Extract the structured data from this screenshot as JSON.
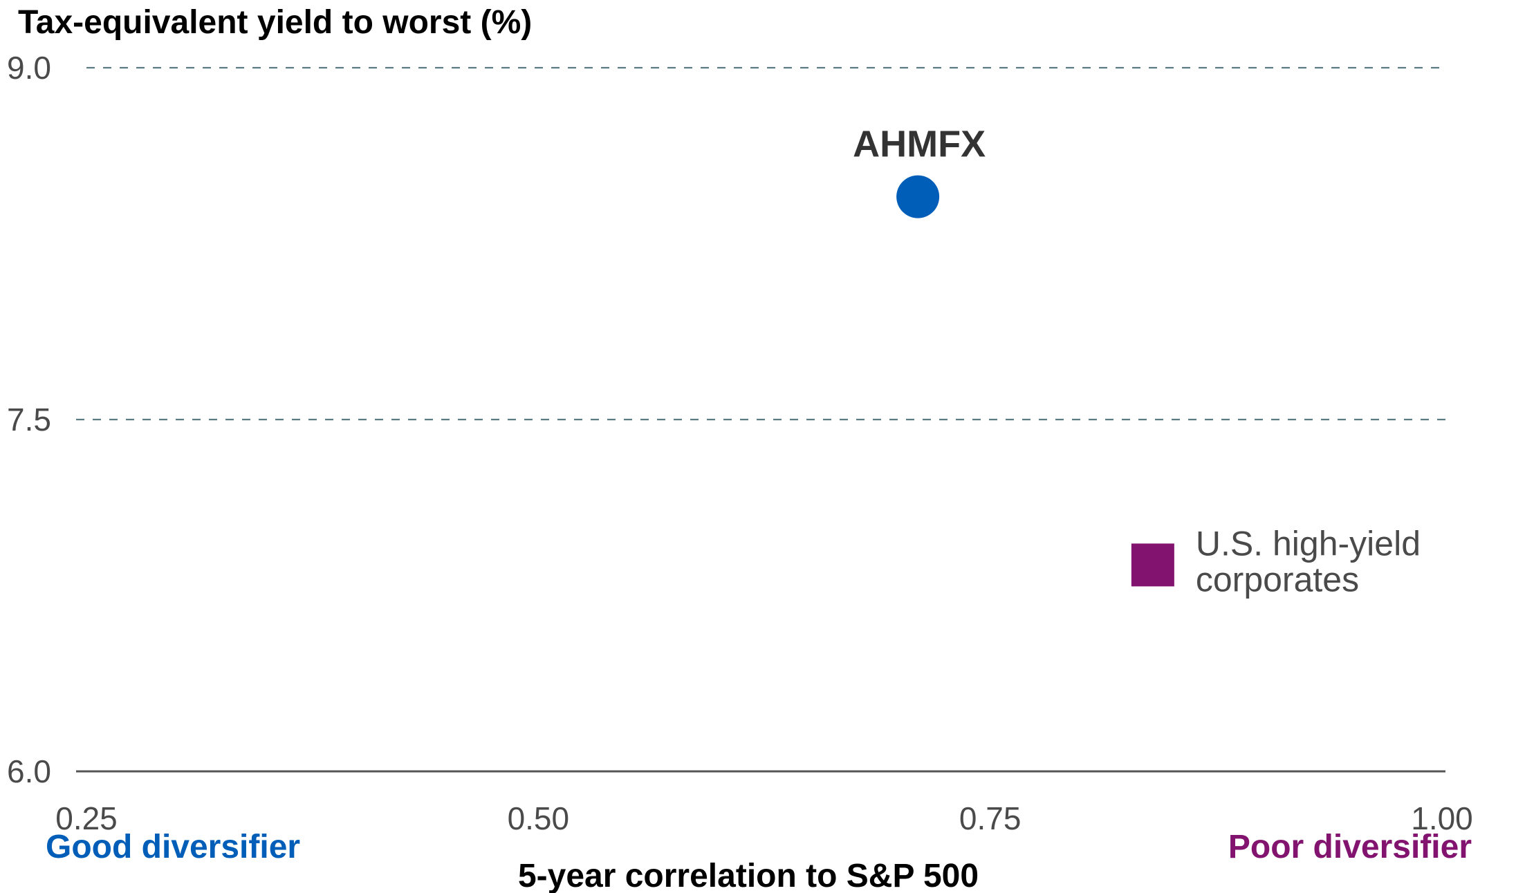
{
  "chart_data": {
    "type": "scatter",
    "title": "",
    "ylabel": "Tax-equivalent yield to worst (%)",
    "xlabel": "5-year correlation to S&P 500",
    "x_ticks": [
      "0.25",
      "0.50",
      "0.75",
      "1.00"
    ],
    "y_ticks": [
      "9.0",
      "7.5",
      "6.0"
    ],
    "xlim": [
      0.25,
      1.0
    ],
    "ylim": [
      6.0,
      9.0
    ],
    "grid": "horizontal dashed",
    "x_end_labels": {
      "left": "Good diversifier",
      "right": "Poor diversifier"
    },
    "points": [
      {
        "name": "AHMFX",
        "x": 0.71,
        "y": 8.45,
        "marker": "circle",
        "color": "#005eb8",
        "label": "AHMFX"
      },
      {
        "name": "U.S. high-yield corporates",
        "x": 0.84,
        "y": 6.88,
        "marker": "square",
        "color": "#821470",
        "label_lines": [
          "U.S. high-yield",
          "corporates"
        ]
      }
    ],
    "colors": {
      "good": "#005eb8",
      "poor": "#821470",
      "grid": "#5b7b82",
      "axis": "#555555"
    }
  }
}
